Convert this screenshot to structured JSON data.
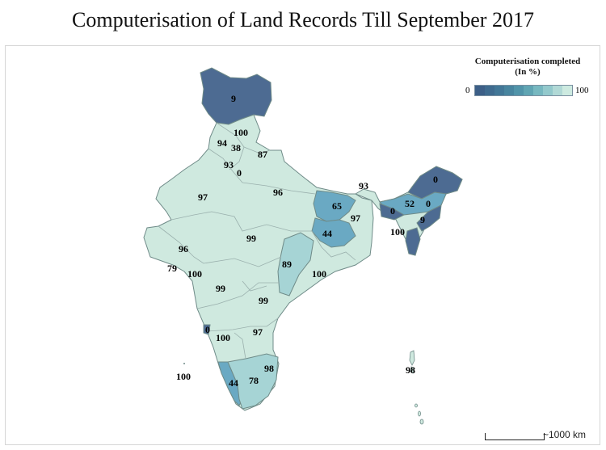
{
  "title": "Computerisation of Land Records Till September 2017",
  "legend": {
    "title_line1": "Computerisation completed",
    "title_line2": "(In %)",
    "min": "0",
    "max": "100",
    "colors": [
      "#3d5f87",
      "#3f6b8f",
      "#427797",
      "#48859f",
      "#5194a9",
      "#60a5b3",
      "#77b8c0",
      "#93c9cc",
      "#b1d9d6",
      "#cdeae0"
    ]
  },
  "scale_label": "~1000 km",
  "map_colors": {
    "low": "#4d6b92",
    "mid": "#6aa9c3",
    "high": "#cfe9df",
    "border": "#9ab0ad",
    "outline": "#6f8b88"
  },
  "chart_data": {
    "type": "choropleth",
    "title": "Computerisation of Land Records Till September 2017",
    "legend_title": "Computerisation completed (In %)",
    "range": [
      0,
      100
    ],
    "legend_placement": "top-right",
    "labels": [
      "9",
      "100",
      "94",
      "38",
      "87",
      "93",
      "0",
      "97",
      "96",
      "93",
      "65",
      "0",
      "52",
      "0",
      "9",
      "100",
      "0",
      "97",
      "44",
      "99",
      "96",
      "79",
      "100",
      "89",
      "100",
      "99",
      "99",
      "0",
      "100",
      "97",
      "100",
      "44",
      "78",
      "98",
      "98"
    ]
  }
}
